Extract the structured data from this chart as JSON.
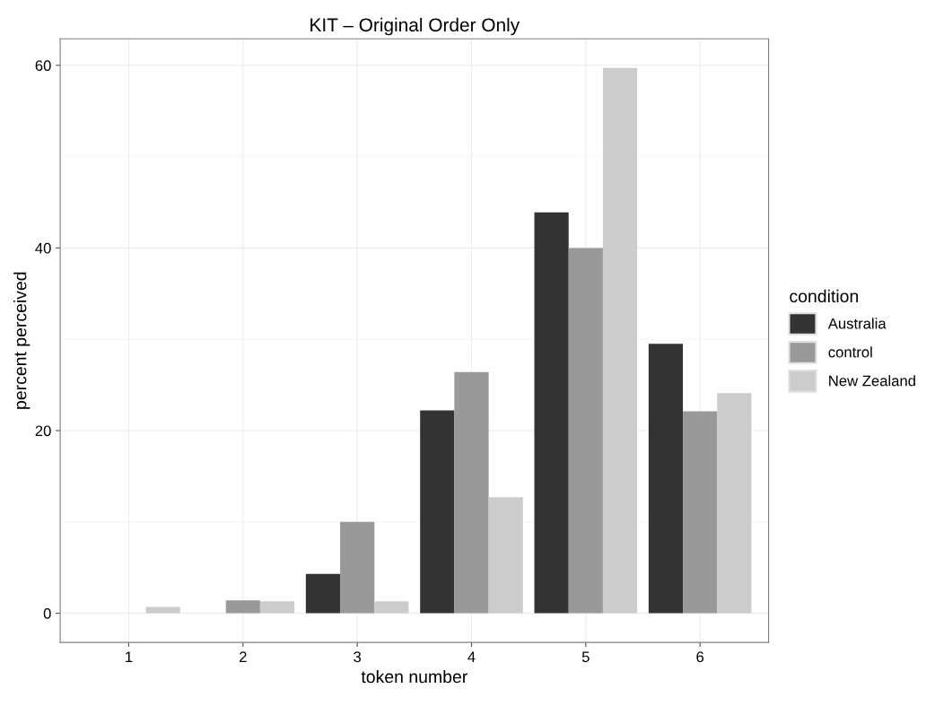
{
  "chart_data": {
    "type": "bar",
    "title": "KIT – Original Order Only",
    "xlabel": "token number",
    "ylabel": "percent perceived",
    "legend_title": "condition",
    "categories": [
      "1",
      "2",
      "3",
      "4",
      "5",
      "6"
    ],
    "series": [
      {
        "name": "Australia",
        "color": "#333333",
        "values": [
          0,
          0,
          4.3,
          22.2,
          43.9,
          29.5
        ]
      },
      {
        "name": "control",
        "color": "#999999",
        "values": [
          0,
          1.4,
          10.0,
          26.4,
          40.0,
          22.1
        ]
      },
      {
        "name": "New Zealand",
        "color": "#cccccc",
        "values": [
          0.7,
          1.3,
          1.3,
          12.7,
          59.7,
          24.1
        ]
      }
    ],
    "ylim": [
      -3.2,
      62.9
    ],
    "yticks": [
      0,
      20,
      40,
      60
    ],
    "grid": true,
    "legend": "right"
  }
}
